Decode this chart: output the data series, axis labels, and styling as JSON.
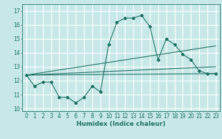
{
  "title": "",
  "xlabel": "Humidex (Indice chaleur)",
  "ylabel": "",
  "bg_color": "#c8e8e8",
  "grid_color": "#ffffff",
  "line_color": "#1a7060",
  "xlim": [
    -0.5,
    23.5
  ],
  "ylim": [
    9.8,
    17.5
  ],
  "yticks": [
    10,
    11,
    12,
    13,
    14,
    15,
    16,
    17
  ],
  "xticks": [
    0,
    1,
    2,
    3,
    4,
    5,
    6,
    7,
    8,
    9,
    10,
    11,
    12,
    13,
    14,
    15,
    16,
    17,
    18,
    19,
    20,
    21,
    22,
    23
  ],
  "line1": {
    "x": [
      0,
      1,
      2,
      3,
      4,
      5,
      6,
      7,
      8,
      9,
      10,
      11,
      12,
      13,
      14,
      15,
      16,
      17,
      18,
      19,
      20,
      21,
      22,
      23
    ],
    "y": [
      12.4,
      11.6,
      11.9,
      11.9,
      10.8,
      10.8,
      10.4,
      10.8,
      11.6,
      11.2,
      14.6,
      16.2,
      16.5,
      16.5,
      16.7,
      15.9,
      13.5,
      15.0,
      14.6,
      13.9,
      13.5,
      12.7,
      12.5,
      12.5
    ]
  },
  "line2": {
    "x": [
      0,
      23
    ],
    "y": [
      12.4,
      14.5
    ]
  },
  "line3": {
    "x": [
      0,
      23
    ],
    "y": [
      12.4,
      13.0
    ]
  },
  "line4": {
    "x": [
      0,
      23
    ],
    "y": [
      12.4,
      12.5
    ]
  }
}
